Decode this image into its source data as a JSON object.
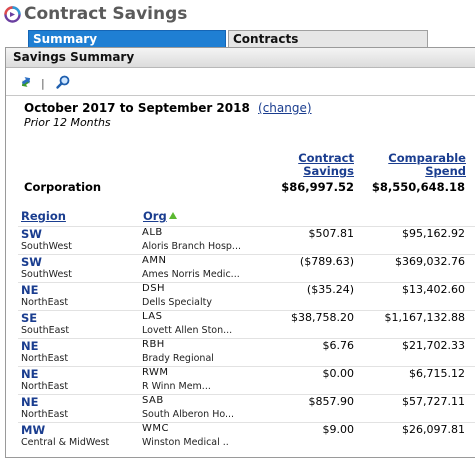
{
  "app": {
    "title": "Contract Savings"
  },
  "tabs": [
    {
      "label": "Summary",
      "active": true
    },
    {
      "label": "Contracts",
      "active": false
    }
  ],
  "panel": {
    "title": "Savings Summary"
  },
  "toolbar": {
    "icons": [
      "refresh-icon",
      "search-icon"
    ],
    "separator": "|"
  },
  "period": {
    "range": "October 2017 to September 2018",
    "change_label": "(change)",
    "subtitle": "Prior 12 Months"
  },
  "columns": {
    "savings": "Contract Savings",
    "spend": "Comparable Spend",
    "region": "Region",
    "org": "Org"
  },
  "corporation": {
    "label": "Corporation",
    "savings": "$86,997.52",
    "spend": "$8,550,648.18"
  },
  "rows": [
    {
      "region_code": "SW",
      "region_name": "SouthWest",
      "org_code": "ALB",
      "org_name": "Aloris Branch Hosp...",
      "savings": "$507.81",
      "spend": "$95,162.92"
    },
    {
      "region_code": "SW",
      "region_name": "SouthWest",
      "org_code": "AMN",
      "org_name": "Ames Norris Medic...",
      "savings": "($789.63)",
      "spend": "$369,032.76"
    },
    {
      "region_code": "NE",
      "region_name": "NorthEast",
      "org_code": "DSH",
      "org_name": "Dells Specialty",
      "savings": "($35.24)",
      "spend": "$13,402.60"
    },
    {
      "region_code": "SE",
      "region_name": "SouthEast",
      "org_code": "LAS",
      "org_name": "Lovett Allen Ston...",
      "savings": "$38,758.20",
      "spend": "$1,167,132.88"
    },
    {
      "region_code": "NE",
      "region_name": "NorthEast",
      "org_code": "RBH",
      "org_name": "Brady Regional",
      "savings": "$6.76",
      "spend": "$21,702.33"
    },
    {
      "region_code": "NE",
      "region_name": "NorthEast",
      "org_code": "RWM",
      "org_name": "R Winn Mem...",
      "savings": "$0.00",
      "spend": "$6,715.12"
    },
    {
      "region_code": "NE",
      "region_name": "NorthEast",
      "org_code": "SAB",
      "org_name": "South Alberon Ho...",
      "savings": "$857.90",
      "spend": "$57,727.11"
    },
    {
      "region_code": "MW",
      "region_name": "Central & MidWest",
      "org_code": "WMC",
      "org_name": "Winston Medical ..",
      "savings": "$9.00",
      "spend": "$26,097.81"
    }
  ],
  "colors": {
    "accent": "#1f7fd3",
    "link": "#1a3d8f",
    "sort_arrow": "#5bb830"
  }
}
